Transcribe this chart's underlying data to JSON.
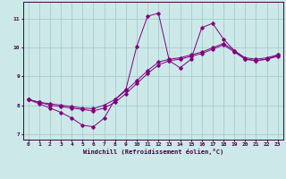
{
  "xlabel": "Windchill (Refroidissement éolien,°C)",
  "bg_color": "#cce8e8",
  "line_color": "#800080",
  "grid_color": "#aacccc",
  "spine_color": "#440044",
  "xlim": [
    -0.5,
    23.5
  ],
  "ylim": [
    6.8,
    11.6
  ],
  "yticks": [
    7,
    8,
    9,
    10,
    11
  ],
  "xticks": [
    0,
    1,
    2,
    3,
    4,
    5,
    6,
    7,
    8,
    9,
    10,
    11,
    12,
    13,
    14,
    15,
    16,
    17,
    18,
    19,
    20,
    21,
    22,
    23
  ],
  "x": [
    0,
    1,
    2,
    3,
    4,
    5,
    6,
    7,
    8,
    9,
    10,
    11,
    12,
    13,
    14,
    15,
    16,
    17,
    18,
    19,
    20,
    21,
    22,
    23
  ],
  "series": [
    [
      8.2,
      8.05,
      7.9,
      7.75,
      7.55,
      7.3,
      7.25,
      7.55,
      8.2,
      8.55,
      10.05,
      11.1,
      11.2,
      9.55,
      9.3,
      9.6,
      10.7,
      10.85,
      10.3,
      9.9,
      9.6,
      9.55,
      9.6,
      9.75
    ],
    [
      8.2,
      8.1,
      8.0,
      7.95,
      7.9,
      7.85,
      7.8,
      7.9,
      8.1,
      8.4,
      8.75,
      9.1,
      9.4,
      9.55,
      9.6,
      9.7,
      9.8,
      9.95,
      10.1,
      9.85,
      9.6,
      9.55,
      9.6,
      9.7
    ],
    [
      8.2,
      8.1,
      8.05,
      8.0,
      7.95,
      7.9,
      7.88,
      8.0,
      8.2,
      8.5,
      8.85,
      9.2,
      9.5,
      9.6,
      9.65,
      9.75,
      9.85,
      10.0,
      10.15,
      9.9,
      9.65,
      9.6,
      9.65,
      9.75
    ]
  ]
}
